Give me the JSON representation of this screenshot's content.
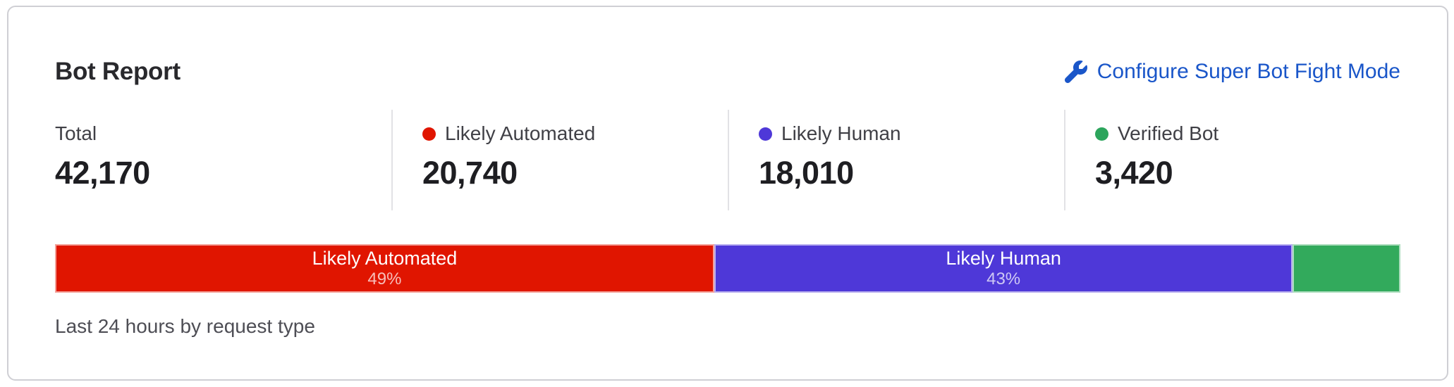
{
  "card": {
    "title": "Bot Report",
    "configure_label": "Configure Super Bot Fight Mode",
    "stats": [
      {
        "label": "Total",
        "value": "42,170",
        "dot_color": null
      },
      {
        "label": "Likely Automated",
        "value": "20,740",
        "dot_color": "#e01500"
      },
      {
        "label": "Likely Human",
        "value": "18,010",
        "dot_color": "#4e38d8"
      },
      {
        "label": "Verified Bot",
        "value": "3,420",
        "dot_color": "#2ca55c"
      }
    ],
    "footer": "Last 24 hours by request type"
  },
  "colors": {
    "link_blue": "#1a56c9",
    "likely_automated_red": "#e01500",
    "likely_human_purple": "#4e38d8",
    "verified_bot_green": "#32aa5c"
  },
  "chart_data": {
    "type": "bar",
    "stacked": true,
    "title": "Bot Report",
    "subtitle": "Last 24 hours by request type",
    "unit": "requests",
    "total": 42170,
    "categories": [
      "Likely Automated",
      "Likely Human",
      "Verified Bot"
    ],
    "values": [
      20740,
      18010,
      3420
    ],
    "percents": [
      49,
      43,
      8
    ],
    "segments": [
      {
        "label": "Likely Automated",
        "value": 20740,
        "percent": 49,
        "bar_label": "Likely Automated",
        "percent_label": "49%",
        "color": "#e01500"
      },
      {
        "label": "Likely Human",
        "value": 18010,
        "percent": 43,
        "bar_label": "Likely Human",
        "percent_label": "43%",
        "color": "#4e38d8"
      },
      {
        "label": "Verified Bot",
        "value": 3420,
        "percent": 8,
        "bar_label": "",
        "percent_label": "",
        "color": "#32aa5c"
      }
    ]
  }
}
